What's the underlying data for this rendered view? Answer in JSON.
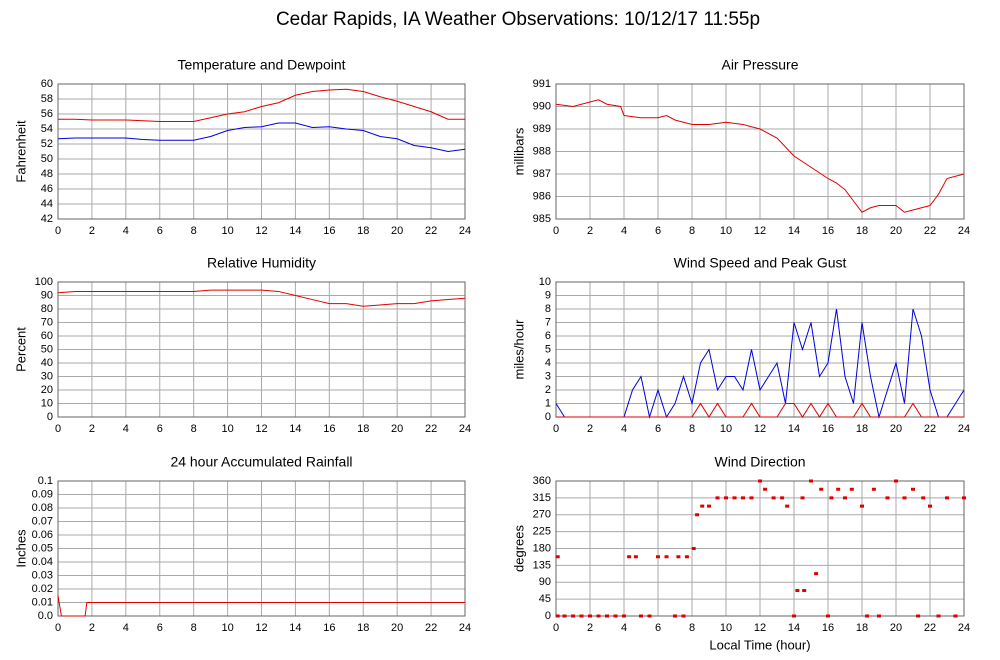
{
  "title": "Cedar Rapids, IA Weather Observations: 10/12/17 11:55p",
  "chart_data": [
    {
      "type": "line",
      "title": "Temperature and Dewpoint",
      "ylabel": "Fahrenheit",
      "grid": true,
      "xlim": [
        0,
        24
      ],
      "xticks": [
        0,
        2,
        4,
        6,
        8,
        10,
        12,
        14,
        16,
        18,
        20,
        22,
        24
      ],
      "ylim": [
        42,
        60
      ],
      "yticks": [
        42,
        44,
        46,
        48,
        50,
        52,
        54,
        56,
        58,
        60
      ],
      "x": [
        0,
        1,
        2,
        3,
        4,
        5,
        6,
        7,
        8,
        9,
        10,
        11,
        12,
        13,
        14,
        15,
        16,
        17,
        18,
        19,
        20,
        21,
        22,
        23,
        24
      ],
      "series": [
        {
          "color": "#e00000",
          "values": [
            55.3,
            55.3,
            55.2,
            55.2,
            55.2,
            55.1,
            55,
            55,
            55,
            55.5,
            56,
            56.3,
            57,
            57.5,
            58.5,
            59,
            59.2,
            59.3,
            59,
            58.3,
            57.7,
            57,
            56.3,
            55.3,
            55.3
          ]
        },
        {
          "color": "#0000e0",
          "values": [
            52.7,
            52.8,
            52.8,
            52.8,
            52.8,
            52.6,
            52.5,
            52.5,
            52.5,
            53,
            53.8,
            54.2,
            54.3,
            54.8,
            54.8,
            54.2,
            54.3,
            54,
            53.8,
            53,
            52.7,
            51.8,
            51.5,
            51,
            51.3
          ]
        }
      ]
    },
    {
      "type": "line",
      "title": "Air Pressure",
      "ylabel": "millibars",
      "grid": true,
      "xlim": [
        0,
        24
      ],
      "xticks": [
        0,
        2,
        4,
        6,
        8,
        10,
        12,
        14,
        16,
        18,
        20,
        22,
        24
      ],
      "ylim": [
        985,
        991
      ],
      "yticks": [
        985,
        986,
        987,
        988,
        989,
        990,
        991
      ],
      "x": [
        0,
        1,
        2,
        2.5,
        3,
        3.8,
        4,
        5,
        6,
        6.5,
        7,
        8,
        9,
        10,
        11,
        12,
        13,
        14,
        15,
        16,
        16.5,
        17,
        17.5,
        18,
        18.5,
        19,
        20,
        20.5,
        21,
        22,
        22.5,
        23,
        24
      ],
      "series": [
        {
          "color": "#e00000",
          "values": [
            990.1,
            990,
            990.2,
            990.3,
            990.1,
            990,
            989.6,
            989.5,
            989.5,
            989.6,
            989.4,
            989.2,
            989.2,
            989.3,
            989.2,
            989,
            988.6,
            987.8,
            987.3,
            986.8,
            986.6,
            986.3,
            985.8,
            985.3,
            985.5,
            985.6,
            985.6,
            985.3,
            985.4,
            985.6,
            986.1,
            986.8,
            987
          ]
        }
      ]
    },
    {
      "type": "line",
      "title": "Relative Humidity",
      "ylabel": "Percent",
      "grid": true,
      "xlim": [
        0,
        24
      ],
      "xticks": [
        0,
        2,
        4,
        6,
        8,
        10,
        12,
        14,
        16,
        18,
        20,
        22,
        24
      ],
      "ylim": [
        0,
        100
      ],
      "yticks": [
        0,
        10,
        20,
        30,
        40,
        50,
        60,
        70,
        80,
        90,
        100
      ],
      "x": [
        0,
        1,
        2,
        3,
        4,
        5,
        6,
        7,
        8,
        9,
        10,
        11,
        12,
        13,
        14,
        15,
        16,
        17,
        18,
        19,
        20,
        21,
        22,
        23,
        24
      ],
      "series": [
        {
          "color": "#e00000",
          "values": [
            92,
            93,
            93,
            93,
            93,
            93,
            93,
            93,
            93,
            94,
            94,
            94,
            94,
            93,
            90,
            87,
            84,
            84,
            82,
            83,
            84,
            84,
            86,
            87,
            88
          ]
        }
      ]
    },
    {
      "type": "line",
      "title": "Wind Speed and Peak Gust",
      "ylabel": "miles/hour",
      "grid": true,
      "xlim": [
        0,
        24
      ],
      "xticks": [
        0,
        2,
        4,
        6,
        8,
        10,
        12,
        14,
        16,
        18,
        20,
        22,
        24
      ],
      "ylim": [
        0,
        10
      ],
      "yticks": [
        0,
        1,
        2,
        3,
        4,
        5,
        6,
        7,
        8,
        9,
        10
      ],
      "x": [
        0,
        0.5,
        1,
        1.5,
        2,
        2.5,
        3,
        3.5,
        4,
        4.5,
        5,
        5.5,
        6,
        6.5,
        7,
        7.5,
        8,
        8.5,
        9,
        9.5,
        10,
        10.5,
        11,
        11.5,
        12,
        12.5,
        13,
        13.5,
        14,
        14.5,
        15,
        15.5,
        16,
        16.5,
        17,
        17.5,
        18,
        18.5,
        19,
        19.5,
        20,
        20.5,
        21,
        21.5,
        22,
        22.5,
        23,
        23.5,
        24
      ],
      "series": [
        {
          "color": "#0000e0",
          "values": [
            1,
            0,
            0,
            0,
            0,
            0,
            0,
            0,
            0,
            2,
            3,
            0,
            2,
            0,
            1,
            3,
            1,
            4,
            5,
            2,
            3,
            3,
            2,
            5,
            2,
            3,
            4,
            1,
            7,
            5,
            7,
            3,
            4,
            8,
            3,
            1,
            7,
            3,
            0,
            2,
            4,
            1,
            8,
            6,
            2,
            0,
            0,
            1,
            2
          ]
        },
        {
          "color": "#e00000",
          "values": [
            0,
            0,
            0,
            0,
            0,
            0,
            0,
            0,
            0,
            0,
            0,
            0,
            0,
            0,
            0,
            0,
            0,
            1,
            0,
            1,
            0,
            0,
            0,
            1,
            0,
            0,
            0,
            1,
            1,
            0,
            1,
            0,
            1,
            0,
            0,
            0,
            1,
            0,
            0,
            0,
            0,
            0,
            1,
            0,
            0,
            0,
            0,
            0,
            0
          ]
        }
      ]
    },
    {
      "type": "line",
      "title": "24 hour Accumulated Rainfall",
      "ylabel": "Inches",
      "grid": true,
      "xlim": [
        0,
        24
      ],
      "xticks": [
        0,
        2,
        4,
        6,
        8,
        10,
        12,
        14,
        16,
        18,
        20,
        22,
        24
      ],
      "ylim": [
        0,
        0.1
      ],
      "yticks": [
        {
          "value": 0,
          "label": "0.0"
        },
        0.01,
        0.02,
        0.03,
        0.04,
        0.05,
        0.06,
        0.07,
        0.08,
        0.09,
        0.1
      ],
      "x": [
        0,
        0.2,
        1.6,
        1.7,
        24
      ],
      "series": [
        {
          "color": "#e00000",
          "values": [
            0.015,
            0,
            0,
            0.01,
            0.01
          ]
        }
      ]
    },
    {
      "type": "scatter",
      "title": "Wind Direction",
      "ylabel": "degrees",
      "xlabel": "Local Time (hour)",
      "grid": true,
      "xlim": [
        0,
        24
      ],
      "xticks": [
        0,
        2,
        4,
        6,
        8,
        10,
        12,
        14,
        16,
        18,
        20,
        22,
        24
      ],
      "ylim": [
        0,
        360
      ],
      "yticks": [
        0,
        45,
        90,
        135,
        180,
        225,
        270,
        315,
        360
      ],
      "x": [
        0.1,
        0.1,
        0.5,
        1,
        1.5,
        2,
        2.5,
        3,
        3.5,
        4,
        4.3,
        4.7,
        5,
        5.5,
        6,
        6.5,
        7,
        7.2,
        7.5,
        7.7,
        8.1,
        8.3,
        8.6,
        9,
        9.5,
        10,
        10.5,
        11,
        11.5,
        12,
        12.3,
        12.8,
        13.3,
        13.6,
        14,
        14.2,
        14.6,
        14.5,
        15,
        15.3,
        15.6,
        16,
        16.2,
        16.6,
        17,
        17.4,
        18,
        18.3,
        18.7,
        19,
        19.5,
        20,
        20.5,
        21,
        21.3,
        21.6,
        22,
        22.5,
        23,
        23.5,
        24
      ],
      "series": [
        {
          "color": "#e00000",
          "values": [
            158,
            0,
            0,
            0,
            0,
            0,
            0,
            0,
            0,
            0,
            158,
            158,
            0,
            0,
            158,
            158,
            0,
            158,
            0,
            158,
            180,
            270,
            293,
            293,
            315,
            315,
            315,
            315,
            315,
            360,
            338,
            315,
            315,
            293,
            0,
            68,
            68,
            315,
            360,
            113,
            338,
            0,
            315,
            338,
            315,
            338,
            293,
            0,
            338,
            0,
            315,
            360,
            315,
            338,
            0,
            315,
            293,
            0,
            315,
            0,
            315
          ]
        }
      ]
    }
  ]
}
